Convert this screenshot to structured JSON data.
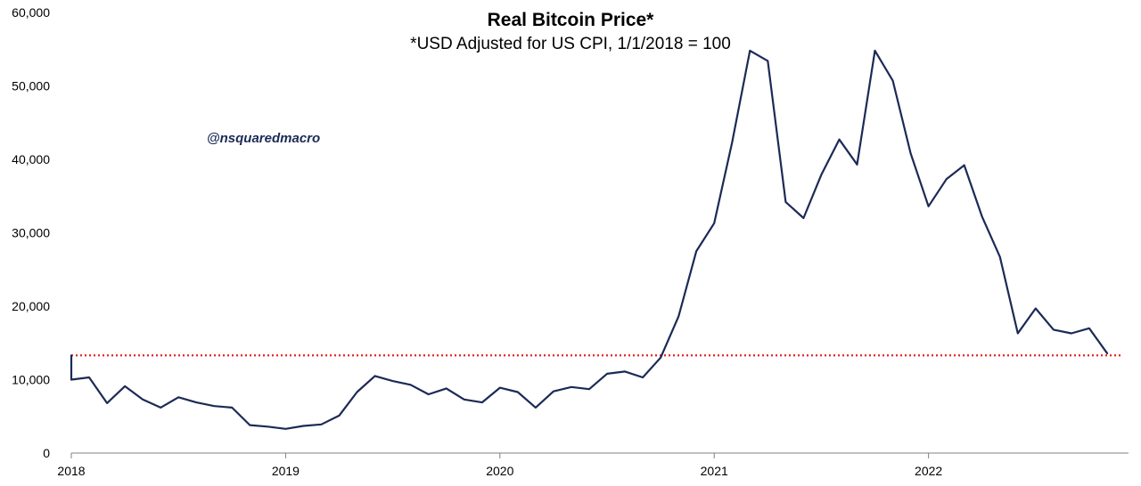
{
  "chart_data": {
    "type": "line",
    "title": "Real Bitcoin Price*",
    "subtitle": "*USD Adjusted for US CPI, 1/1/2018 = 100",
    "watermark": "@nsquaredmacro",
    "xlabel": "",
    "ylabel": "",
    "ylim": [
      0,
      60000
    ],
    "y_ticks": [
      0,
      10000,
      20000,
      30000,
      40000,
      50000,
      60000
    ],
    "y_tick_labels": [
      "0",
      "10,000",
      "20,000",
      "30,000",
      "40,000",
      "50,000",
      "60,000"
    ],
    "x_ticks": [
      0,
      12,
      24,
      36,
      48
    ],
    "x_tick_labels": [
      "2018",
      "2019",
      "2020",
      "2021",
      "2022"
    ],
    "xlim": [
      0,
      58.8
    ],
    "grid": false,
    "series": [
      {
        "name": "Real Bitcoin Price",
        "color": "#1c2a56",
        "x": [
          0,
          0,
          1,
          2,
          3,
          4,
          5,
          6,
          7,
          8,
          9,
          10,
          11,
          12,
          13,
          14,
          15,
          16,
          17,
          18,
          19,
          20,
          21,
          22,
          23,
          24,
          25,
          26,
          27,
          28,
          29,
          30,
          31,
          32,
          33,
          34,
          35,
          36,
          37,
          38,
          39,
          40,
          41,
          42,
          43,
          44,
          45,
          46,
          47,
          48,
          49,
          50,
          51,
          52,
          53,
          54,
          55,
          56,
          57,
          58
        ],
        "values": [
          13300,
          10000,
          10300,
          6800,
          9100,
          7300,
          6200,
          7600,
          6900,
          6400,
          6200,
          3800,
          3600,
          3300,
          3700,
          3900,
          5100,
          8300,
          10500,
          9800,
          9300,
          8000,
          8800,
          7300,
          6900,
          8900,
          8300,
          6200,
          8400,
          9000,
          8700,
          10800,
          11100,
          10300,
          13000,
          18600,
          27500,
          31300,
          42300,
          54800,
          53400,
          34200,
          32000,
          37900,
          42700,
          39300,
          54800,
          50700,
          40800,
          33600,
          37300,
          39200,
          32200,
          26700,
          16300,
          19700,
          16800,
          16300,
          17000,
          13600
        ]
      }
    ],
    "reference_line": {
      "value": 13300,
      "style": "dotted",
      "color": "#e8231f"
    }
  }
}
